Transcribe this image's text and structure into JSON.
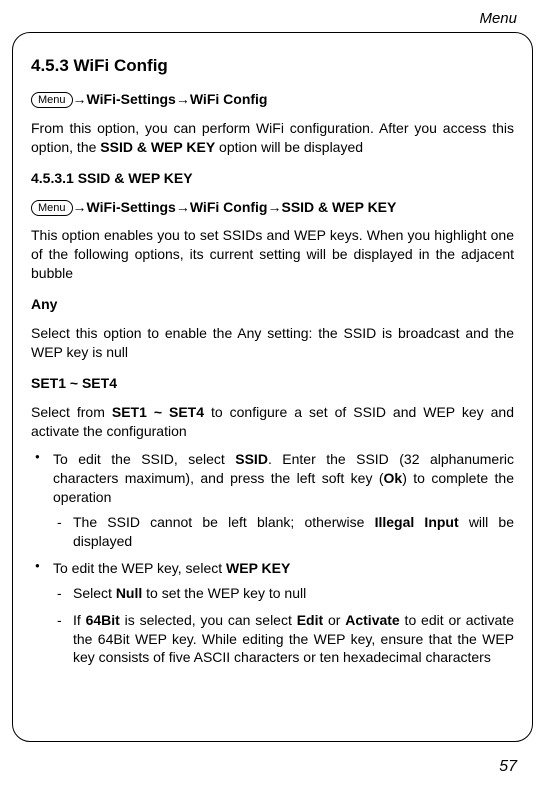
{
  "header": {
    "label": "Menu"
  },
  "page": {
    "number": "57"
  },
  "menuButton": "Menu",
  "sec453": {
    "title": "4.5.3 WiFi Config",
    "bc_wifi_settings": "WiFi-Settings",
    "bc_wifi_config": "WiFi Config",
    "intro_a": "From this option, you can perform WiFi configuration. After you access this option, the ",
    "intro_b": "SSID & WEP KEY",
    "intro_c": " option will be displayed"
  },
  "sec4531": {
    "title": "4.5.3.1 SSID & WEP KEY",
    "bc_wifi_settings": "WiFi-Settings",
    "bc_wifi_config": "WiFi Config",
    "bc_ssid_wep": "SSID & WEP KEY",
    "desc": "This option enables you to set SSIDs and WEP keys. When you highlight one of the following options, its current setting will be displayed in the adjacent bubble"
  },
  "any": {
    "title": "Any",
    "desc": "Select this option to enable the Any setting: the SSID is broadcast and the WEP key is null"
  },
  "set": {
    "title": "SET1 ~ SET4",
    "intro_a": "Select from ",
    "intro_b": "SET1 ~ SET4",
    "intro_c": " to configure a set of SSID and WEP key and activate the configuration",
    "b1_a": "To edit the SSID, select ",
    "b1_b": "SSID",
    "b1_c": ". Enter the SSID (32 alphanumeric characters maximum), and press the left soft key (",
    "b1_d": "Ok",
    "b1_e": ") to complete the operation",
    "b1_d1_a": "The SSID cannot be left blank; otherwise ",
    "b1_d1_b": "Illegal Input",
    "b1_d1_c": " will be displayed",
    "b2_a": "To edit the WEP key, select ",
    "b2_b": "WEP KEY",
    "b2_d1_a": "Select ",
    "b2_d1_b": "Null",
    "b2_d1_c": " to set the WEP key to null",
    "b2_d2_a": "If ",
    "b2_d2_b": "64Bit",
    "b2_d2_c": " is selected, you can select ",
    "b2_d2_d": "Edit",
    "b2_d2_e": " or ",
    "b2_d2_f": "Activate",
    "b2_d2_g": " to edit or activate the 64Bit WEP key. While editing the WEP key, ensure that the WEP key consists of five ASCII characters or ten hexadecimal characters"
  }
}
